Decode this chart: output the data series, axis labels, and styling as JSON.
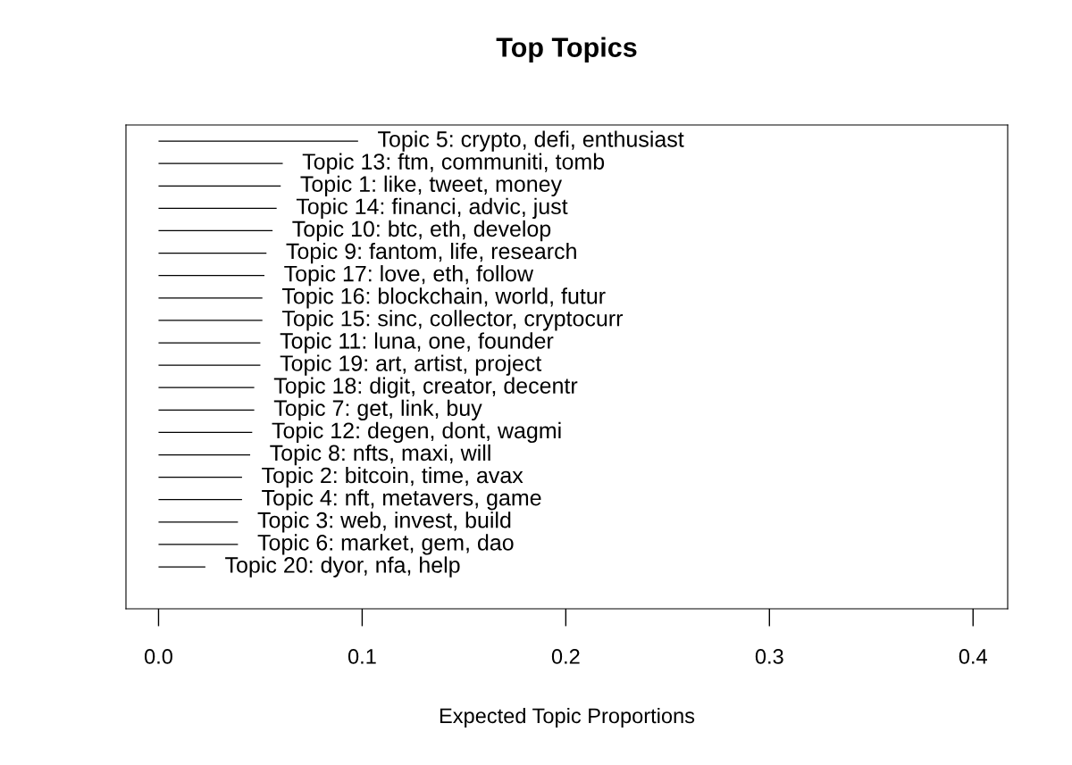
{
  "chart_data": {
    "type": "bar",
    "orientation": "horizontal",
    "title": "Top Topics",
    "xlabel": "Expected Topic Proportions",
    "categories": [
      "Topic 5: crypto, defi, enthusiast",
      "Topic 13: ftm, communiti, tomb",
      "Topic 1: like, tweet, money",
      "Topic 14: financi, advic, just",
      "Topic 10: btc, eth, develop",
      "Topic 9: fantom, life, research",
      "Topic 17: love, eth, follow",
      "Topic 16: blockchain, world, futur",
      "Topic 15: sinc, collector, cryptocurr",
      "Topic 11: luna, one, founder",
      "Topic 19: art, artist, project",
      "Topic 18: digit, creator, decentr",
      "Topic 7: get, link, buy",
      "Topic 12: degen, dont, wagmi",
      "Topic 8: nfts, maxi, will",
      "Topic 2: bitcoin, time, avax",
      "Topic 4: nft, metavers, game",
      "Topic 3: web, invest, build",
      "Topic 6: market, gem, dao",
      "Topic 20: dyor, nfa, help"
    ],
    "values": [
      0.098,
      0.061,
      0.06,
      0.058,
      0.056,
      0.053,
      0.052,
      0.051,
      0.051,
      0.05,
      0.05,
      0.047,
      0.047,
      0.046,
      0.045,
      0.041,
      0.041,
      0.039,
      0.039,
      0.023
    ],
    "color": "#000000",
    "xlim": [
      -0.016,
      0.417
    ],
    "xticks": [
      {
        "value": 0,
        "label": "0.0"
      },
      0.1,
      0.2,
      0.3,
      0.4
    ],
    "grid": false,
    "tick_labels": "x"
  }
}
